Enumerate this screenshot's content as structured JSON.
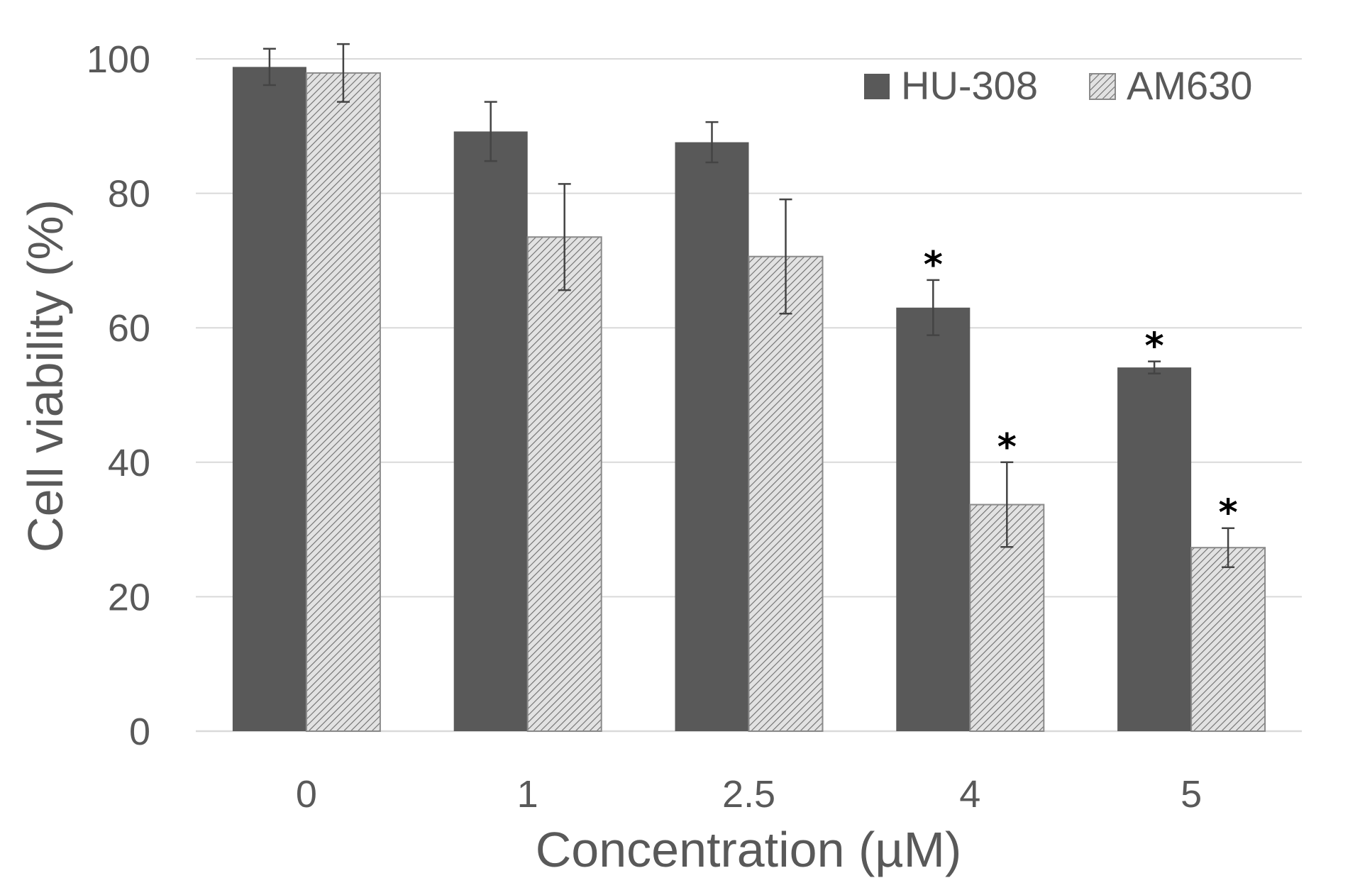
{
  "chart_data": {
    "type": "bar",
    "title": "",
    "xlabel": "Concentration (µM)",
    "ylabel": "Cell viability (%)",
    "categories": [
      "0",
      "1",
      "2.5",
      "4",
      "5"
    ],
    "ylim": [
      0,
      100
    ],
    "yticks": [
      "0",
      "20",
      "40",
      "60",
      "80",
      "100"
    ],
    "grid": true,
    "legend_position": "top-right",
    "series": [
      {
        "name": "HU-308",
        "values": [
          98.8,
          89.2,
          87.6,
          63.0,
          54.1
        ],
        "errors": [
          2.7,
          4.4,
          3.0,
          4.1,
          0.9
        ],
        "significance": [
          "",
          "",
          "",
          "*",
          "*"
        ],
        "color": "#595959",
        "pattern": "solid"
      },
      {
        "name": "AM630",
        "values": [
          97.9,
          73.5,
          70.6,
          33.7,
          27.3
        ],
        "errors": [
          4.3,
          7.9,
          8.5,
          6.3,
          2.9
        ],
        "significance": [
          "",
          "",
          "",
          "*",
          "*"
        ],
        "color": "#d0d0d0",
        "pattern": "diagonal-hatch"
      }
    ]
  }
}
